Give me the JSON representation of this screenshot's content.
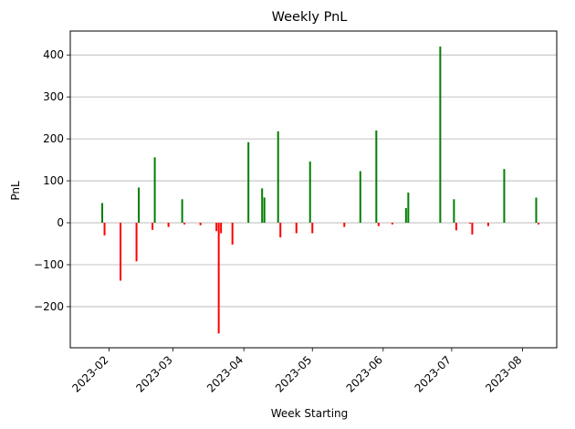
{
  "chart_data": {
    "type": "bar",
    "title": "Weekly PnL",
    "xlabel": "Week Starting",
    "ylabel": "PnL",
    "xlim": [
      "2023-01-15",
      "2023-08-16"
    ],
    "ylim": [
      -298,
      457
    ],
    "y_ticks": [
      -200,
      -100,
      0,
      100,
      200,
      300,
      400
    ],
    "x_ticks": [
      "2023-02",
      "2023-03",
      "2023-04",
      "2023-05",
      "2023-06",
      "2023-07",
      "2023-08"
    ],
    "grid": "horizontal",
    "colors": {
      "positive": "#008000",
      "negative": "#ff0000",
      "grid": "#b0b0b0"
    },
    "series": [
      {
        "values": [
          {
            "x": "2023-01-29",
            "y": 47
          },
          {
            "x": "2023-01-30",
            "y": -30
          },
          {
            "x": "2023-02-06",
            "y": -138
          },
          {
            "x": "2023-02-13",
            "y": -92
          },
          {
            "x": "2023-02-14",
            "y": 84
          },
          {
            "x": "2023-02-20",
            "y": -17
          },
          {
            "x": "2023-02-21",
            "y": 156
          },
          {
            "x": "2023-02-27",
            "y": -10
          },
          {
            "x": "2023-03-05",
            "y": 56
          },
          {
            "x": "2023-03-06",
            "y": -4
          },
          {
            "x": "2023-03-13",
            "y": -6
          },
          {
            "x": "2023-03-20",
            "y": -20
          },
          {
            "x": "2023-03-21",
            "y": -264
          },
          {
            "x": "2023-03-22",
            "y": -25
          },
          {
            "x": "2023-03-27",
            "y": -52
          },
          {
            "x": "2023-04-03",
            "y": 192
          },
          {
            "x": "2023-04-09",
            "y": 82
          },
          {
            "x": "2023-04-10",
            "y": 60
          },
          {
            "x": "2023-04-16",
            "y": 218
          },
          {
            "x": "2023-04-17",
            "y": -35
          },
          {
            "x": "2023-04-24",
            "y": -25
          },
          {
            "x": "2023-04-30",
            "y": 146
          },
          {
            "x": "2023-05-01",
            "y": -25
          },
          {
            "x": "2023-05-15",
            "y": -10
          },
          {
            "x": "2023-05-22",
            "y": 123
          },
          {
            "x": "2023-05-29",
            "y": 220
          },
          {
            "x": "2023-05-30",
            "y": -8
          },
          {
            "x": "2023-06-05",
            "y": -4
          },
          {
            "x": "2023-06-11",
            "y": 35
          },
          {
            "x": "2023-06-12",
            "y": 72
          },
          {
            "x": "2023-06-26",
            "y": 420
          },
          {
            "x": "2023-07-02",
            "y": 56
          },
          {
            "x": "2023-07-03",
            "y": -18
          },
          {
            "x": "2023-07-09",
            "y": -2
          },
          {
            "x": "2023-07-10",
            "y": -28
          },
          {
            "x": "2023-07-17",
            "y": -8
          },
          {
            "x": "2023-07-24",
            "y": 128
          },
          {
            "x": "2023-08-07",
            "y": 60
          },
          {
            "x": "2023-08-08",
            "y": -4
          }
        ]
      }
    ]
  }
}
